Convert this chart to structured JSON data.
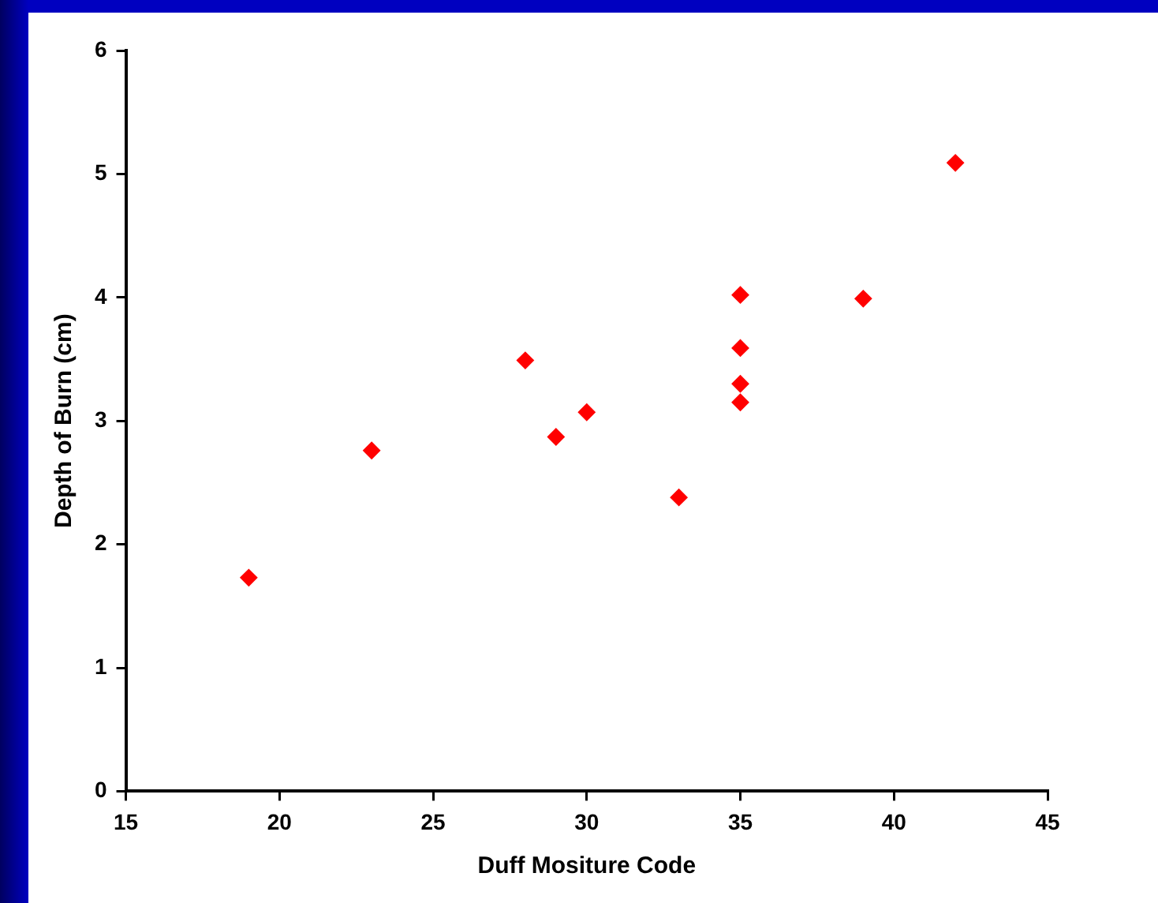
{
  "chart_data": {
    "type": "scatter",
    "xlabel": "Duff Mositure Code",
    "ylabel": "Depth of Burn (cm)",
    "x": [
      19,
      23,
      28,
      29,
      30,
      33,
      35,
      35,
      35,
      35,
      39,
      42
    ],
    "values": [
      1.73,
      2.76,
      3.49,
      2.87,
      3.07,
      2.38,
      4.02,
      3.59,
      3.3,
      3.15,
      3.99,
      5.09
    ],
    "color": "#ff0000",
    "marker": "diamond",
    "xlim": [
      15,
      45
    ],
    "xticks": [
      15,
      20,
      25,
      30,
      35,
      40,
      45
    ],
    "ylim": [
      0,
      6
    ],
    "yticks": [
      0,
      1,
      2,
      3,
      4,
      5,
      6
    ],
    "grid": false,
    "legend": false
  }
}
